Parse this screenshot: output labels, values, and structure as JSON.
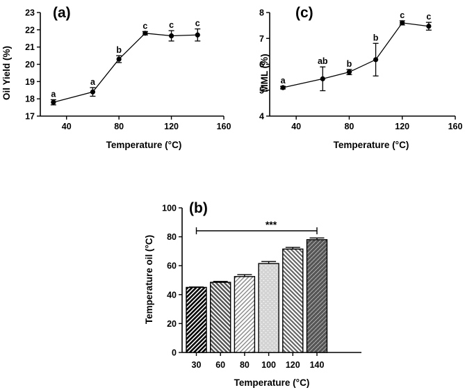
{
  "chart_data": [
    {
      "panel": "(a)",
      "type": "line",
      "xlabel": "Temperature (°C)",
      "ylabel": "Oil Yield (%)",
      "xlim": [
        20,
        160
      ],
      "ylim": [
        17,
        23
      ],
      "xticks": [
        40,
        80,
        120,
        160
      ],
      "yticks": [
        17,
        18,
        19,
        20,
        21,
        22,
        23
      ],
      "x": [
        30,
        60,
        80,
        100,
        120,
        140
      ],
      "values": [
        17.8,
        18.4,
        20.3,
        21.8,
        21.65,
        21.7
      ],
      "errors": [
        0.15,
        0.25,
        0.2,
        0.1,
        0.3,
        0.35
      ],
      "letters": [
        "a",
        "a",
        "b",
        "c",
        "c",
        "c"
      ]
    },
    {
      "panel": "(c)",
      "type": "line",
      "xlabel": "Temperature (°C)",
      "ylabel": "MML (%)",
      "xlim": [
        20,
        160
      ],
      "ylim": [
        4,
        8
      ],
      "xticks": [
        40,
        80,
        120,
        160
      ],
      "yticks": [
        4,
        5,
        6,
        7,
        8
      ],
      "x": [
        30,
        60,
        80,
        100,
        120,
        140
      ],
      "values": [
        5.1,
        5.44,
        5.7,
        6.18,
        7.6,
        7.47
      ],
      "errors": [
        0.05,
        0.46,
        0.1,
        0.63,
        0.08,
        0.15
      ],
      "letters": [
        "a",
        "ab",
        "b",
        "b",
        "c",
        "c"
      ]
    },
    {
      "panel": "(b)",
      "type": "bar",
      "xlabel": "Temperature (°C)",
      "ylabel": "Temperature oil (°C)",
      "ylim": [
        0,
        100
      ],
      "yticks": [
        0,
        20,
        40,
        60,
        80,
        100
      ],
      "categories": [
        "30",
        "60",
        "80",
        "100",
        "120",
        "140"
      ],
      "values": [
        45,
        48.5,
        52.5,
        61.5,
        71.5,
        78
      ],
      "errors": [
        0.3,
        0.6,
        1.3,
        1.4,
        1.2,
        1.2
      ],
      "significance": "***"
    }
  ]
}
